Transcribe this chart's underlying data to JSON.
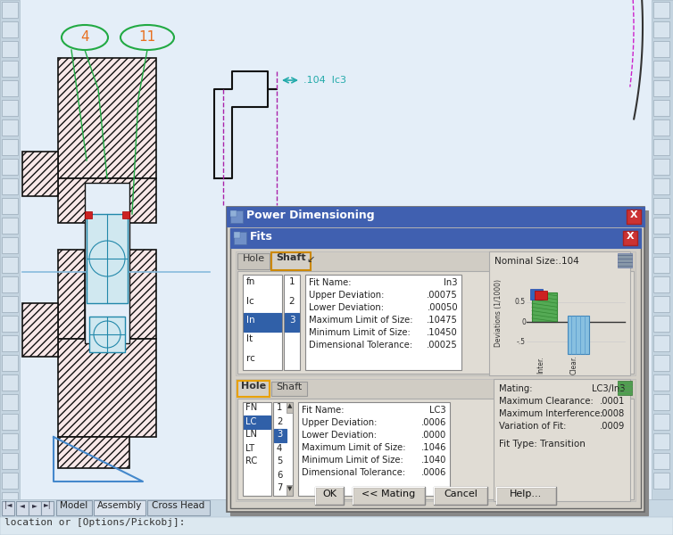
{
  "cad_bg": "#dce8f0",
  "toolbar_bg": "#c8d8e4",
  "dialog_title_color": "#4060b0",
  "dialog_bg": "#d4d0c8",
  "white": "#ffffff",
  "highlight_blue": "#3060a8",
  "highlight_orange": "#e8a000",
  "title_text": "Power Dimensioning",
  "fits_title": "Fits",
  "nominal_size": "Nominal Size:.104",
  "shaft_items": [
    "fn",
    "lc",
    "ln",
    "lt",
    "rc"
  ],
  "shaft_selected": 2,
  "shaft_fit_name": "ln3",
  "shaft_upper_dev": ".00075",
  "shaft_lower_dev": ".00050",
  "shaft_max_size": ".10475",
  "shaft_min_size": ".10450",
  "shaft_dim_tol": ".00025",
  "hole_items": [
    "FN",
    "LC",
    "LN",
    "LT",
    "RC"
  ],
  "hole_selected": 1,
  "hole_fit_name": "LC3",
  "hole_upper_dev": ".0006",
  "hole_lower_dev": ".0000",
  "hole_max_size": ".1046",
  "hole_min_size": ".1040",
  "hole_dim_tol": ".0006",
  "mating": "LC3/ln3",
  "max_clearance": ".0001",
  "max_interference": ".0008",
  "variation_of_fit": ".0009",
  "fit_type": "Fit Type: Transition",
  "status_text": "location or [Options/Pickobj]:"
}
